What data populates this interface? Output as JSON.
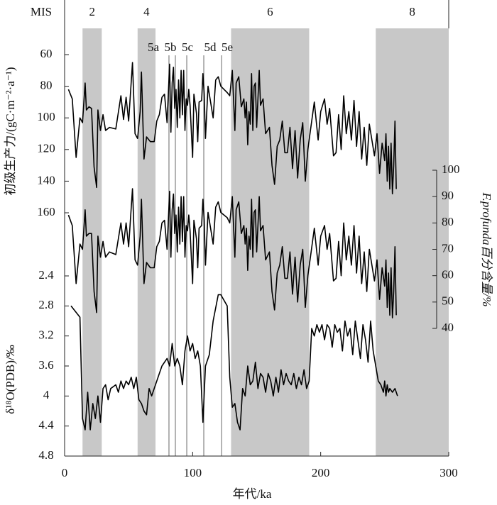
{
  "chart_data": {
    "type": "line",
    "xlabel": "年代/ka",
    "xlim": [
      0,
      300
    ],
    "xticks": [
      0,
      100,
      200,
      300
    ],
    "ylabel": "初级生产力/(gC·m⁻²·a⁻¹)",
    "ylim": [
      60,
      160
    ],
    "yinvert": true,
    "yticks": [
      60,
      80,
      100,
      120,
      140,
      160
    ],
    "y2label": "F.profunda百分含量/%",
    "y2lim": [
      40,
      100
    ],
    "y2ticks": [
      40,
      50,
      60,
      70,
      80,
      90,
      100
    ],
    "y3label": "δ¹⁸O(PDB)/‰",
    "y3lim": [
      2.4,
      4.8
    ],
    "y3invert": true,
    "y3ticks": [
      2.4,
      2.8,
      3.2,
      3.6,
      4,
      4.4,
      4.8
    ],
    "band_color": "#c8c8c8",
    "substage_color": "#808080",
    "mis": {
      "label": "MIS",
      "stages": [
        {
          "label": "2",
          "start": 14,
          "end": 29
        },
        {
          "label": "4",
          "start": 57,
          "end": 71
        },
        {
          "label": "6",
          "start": 130,
          "end": 191
        },
        {
          "label": "8",
          "start": 243,
          "end": 300
        }
      ]
    },
    "substages": [
      {
        "label": "5a",
        "value": 81.5
      },
      {
        "label": "5b",
        "value": 86.5
      },
      {
        "label": "5c",
        "value": 95.4
      },
      {
        "label": "5d",
        "value": 108.7
      },
      {
        "label": "5e",
        "value": 122.6
      }
    ],
    "series": [
      {
        "axis": "y",
        "color": "#000000",
        "x": [
          3,
          6,
          9,
          12,
          14,
          16,
          17,
          19,
          21,
          23,
          25,
          26,
          28,
          30,
          32,
          35,
          40,
          44,
          46,
          48,
          50,
          53,
          55,
          57,
          59,
          60,
          62,
          64,
          67,
          70,
          72,
          74,
          76,
          78,
          80,
          82,
          83,
          84,
          85,
          86,
          87,
          88,
          89,
          90,
          91,
          92,
          93,
          94,
          95,
          96,
          97,
          98,
          100,
          101,
          103,
          104,
          105,
          107,
          108,
          109,
          110,
          112,
          114,
          116,
          118,
          120,
          122,
          127,
          129,
          131,
          133,
          134,
          136,
          138,
          140,
          141,
          142,
          143,
          144,
          145,
          146,
          147,
          148,
          149,
          150,
          151,
          152,
          153,
          155,
          157,
          160,
          162,
          164,
          166,
          168,
          170,
          172,
          174,
          176,
          178,
          180,
          182,
          184,
          186,
          188,
          190,
          192,
          195,
          198,
          200,
          203,
          205,
          207,
          210,
          212,
          214,
          216,
          218,
          220,
          222,
          224,
          226,
          228,
          230,
          232,
          234,
          236,
          238,
          240,
          242,
          244,
          246,
          248,
          250,
          251,
          252,
          253,
          254,
          255,
          256,
          257,
          258,
          259
        ],
        "values": [
          82,
          88,
          125,
          100,
          103,
          78,
          95,
          93,
          94,
          131,
          144,
          95,
          108,
          98,
          108,
          106,
          107,
          86,
          101,
          87,
          102,
          65,
          110,
          113,
          96,
          71,
          126,
          112,
          115,
          115,
          102,
          98,
          87,
          85,
          103,
          66,
          109,
          78,
          68,
          94,
          82,
          106,
          76,
          100,
          70,
          98,
          70,
          108,
          88,
          92,
          82,
          92,
          125,
          85,
          97,
          115,
          90,
          89,
          72,
          85,
          113,
          80,
          90,
          100,
          76,
          74,
          80,
          84,
          86,
          70,
          108,
          78,
          74,
          93,
          88,
          100,
          90,
          117,
          96,
          104,
          72,
          108,
          80,
          78,
          106,
          88,
          70,
          92,
          88,
          110,
          106,
          130,
          142,
          118,
          114,
          102,
          122,
          122,
          106,
          132,
          108,
          138,
          114,
          103,
          140,
          120,
          108,
          90,
          114,
          96,
          88,
          104,
          94,
          124,
          122,
          98,
          120,
          86,
          110,
          96,
          114,
          89,
          118,
          96,
          126,
          106,
          130,
          104,
          114,
          124,
          110,
          135,
          116,
          127,
          110,
          140,
          118,
          145,
          116,
          148,
          130,
          102,
          145
        ]
      },
      {
        "axis": "y2",
        "color": "#000000",
        "x": [
          3,
          6,
          9,
          12,
          14,
          16,
          17,
          19,
          21,
          23,
          25,
          26,
          28,
          30,
          32,
          35,
          40,
          44,
          46,
          48,
          50,
          53,
          55,
          57,
          59,
          60,
          62,
          64,
          67,
          70,
          72,
          74,
          76,
          78,
          80,
          82,
          83,
          84,
          85,
          86,
          87,
          88,
          89,
          90,
          91,
          92,
          93,
          94,
          95,
          96,
          97,
          98,
          100,
          101,
          103,
          104,
          105,
          107,
          108,
          109,
          110,
          112,
          114,
          116,
          118,
          120,
          122,
          127,
          129,
          131,
          133,
          134,
          136,
          138,
          140,
          141,
          142,
          143,
          144,
          145,
          146,
          147,
          148,
          149,
          150,
          151,
          152,
          153,
          155,
          157,
          160,
          162,
          164,
          166,
          168,
          170,
          172,
          174,
          176,
          178,
          180,
          182,
          184,
          186,
          188,
          190,
          192,
          195,
          198,
          200,
          203,
          205,
          207,
          210,
          212,
          214,
          216,
          218,
          220,
          222,
          224,
          226,
          228,
          230,
          232,
          234,
          236,
          238,
          240,
          242,
          244,
          246,
          248,
          250,
          251,
          252,
          253,
          254,
          255,
          256,
          257,
          258,
          259
        ],
        "values": [
          83,
          79,
          57,
          72,
          70,
          85,
          75,
          76,
          76,
          54,
          46,
          75,
          67,
          73,
          67,
          69,
          68,
          80,
          72,
          80,
          71,
          93,
          66,
          64,
          75,
          89,
          57,
          65,
          63,
          63,
          71,
          73,
          80,
          81,
          70,
          92,
          67,
          85,
          91,
          76,
          83,
          69,
          86,
          72,
          90,
          73,
          90,
          67,
          79,
          77,
          83,
          77,
          57,
          81,
          74,
          63,
          78,
          79,
          89,
          81,
          64,
          84,
          78,
          72,
          86,
          88,
          84,
          82,
          80,
          90,
          67,
          85,
          88,
          76,
          79,
          72,
          78,
          62,
          75,
          70,
          89,
          67,
          84,
          85,
          69,
          79,
          90,
          77,
          79,
          66,
          69,
          54,
          47,
          61,
          64,
          71,
          59,
          59,
          69,
          53,
          67,
          50,
          64,
          70,
          48,
          60,
          67,
          78,
          64,
          75,
          79,
          70,
          76,
          58,
          59,
          73,
          60,
          80,
          66,
          75,
          64,
          79,
          61,
          75,
          57,
          69,
          54,
          70,
          64,
          58,
          66,
          51,
          63,
          56,
          66,
          48,
          61,
          45,
          63,
          44,
          54,
          71,
          45
        ]
      },
      {
        "axis": "y3",
        "color": "#000000",
        "x": [
          5,
          12,
          14,
          16,
          18,
          20,
          22,
          24,
          26,
          28,
          30,
          32,
          34,
          36,
          40,
          42,
          44,
          46,
          48,
          50,
          52,
          54,
          56,
          58,
          60,
          62,
          64,
          66,
          68,
          70,
          72,
          74,
          76,
          78,
          80,
          82,
          84,
          86,
          88,
          90,
          92,
          94,
          96,
          98,
          100,
          102,
          104,
          106,
          108,
          110,
          113,
          116,
          120,
          122,
          127,
          129,
          131,
          133,
          135,
          137,
          139,
          141,
          143,
          145,
          147,
          149,
          151,
          153,
          155,
          157,
          159,
          161,
          163,
          165,
          167,
          169,
          171,
          173,
          175,
          177,
          179,
          181,
          183,
          185,
          187,
          189,
          191,
          193,
          195,
          197,
          199,
          201,
          203,
          205,
          207,
          209,
          211,
          213,
          215,
          217,
          219,
          221,
          223,
          225,
          227,
          229,
          231,
          233,
          235,
          237,
          239,
          241,
          243,
          245,
          247,
          249,
          250,
          251,
          252,
          253,
          254,
          256,
          258,
          260
        ],
        "values": [
          2.8,
          2.95,
          4.3,
          4.45,
          3.95,
          4.45,
          4.1,
          4.3,
          4.0,
          4.35,
          3.9,
          3.85,
          4.05,
          3.9,
          3.85,
          3.95,
          3.8,
          3.9,
          3.8,
          3.85,
          3.75,
          3.9,
          3.75,
          4.05,
          4.1,
          4.2,
          4.25,
          3.9,
          4.0,
          3.9,
          3.8,
          3.7,
          3.6,
          3.55,
          3.5,
          3.6,
          3.3,
          3.6,
          3.5,
          3.6,
          3.85,
          3.4,
          3.2,
          3.4,
          3.3,
          3.5,
          3.4,
          3.6,
          4.35,
          3.6,
          3.45,
          3.0,
          2.65,
          2.65,
          2.8,
          3.75,
          4.15,
          4.1,
          4.35,
          4.45,
          3.9,
          4.0,
          3.6,
          3.85,
          3.8,
          3.55,
          3.9,
          3.7,
          3.75,
          3.95,
          3.7,
          3.8,
          4.0,
          3.75,
          3.95,
          3.65,
          3.85,
          3.7,
          3.8,
          3.85,
          3.7,
          3.9,
          3.75,
          3.85,
          3.65,
          3.9,
          3.8,
          3.1,
          3.2,
          3.05,
          3.15,
          3.05,
          3.25,
          3.05,
          3.1,
          3.35,
          3.05,
          3.15,
          3.1,
          3.4,
          3.0,
          3.2,
          3.1,
          3.45,
          3.0,
          3.25,
          3.5,
          3.05,
          3.25,
          3.55,
          3.0,
          3.4,
          3.6,
          3.8,
          3.85,
          3.95,
          3.8,
          4.0,
          3.85,
          3.95,
          3.9,
          3.95,
          3.9,
          4.0
        ]
      }
    ]
  }
}
